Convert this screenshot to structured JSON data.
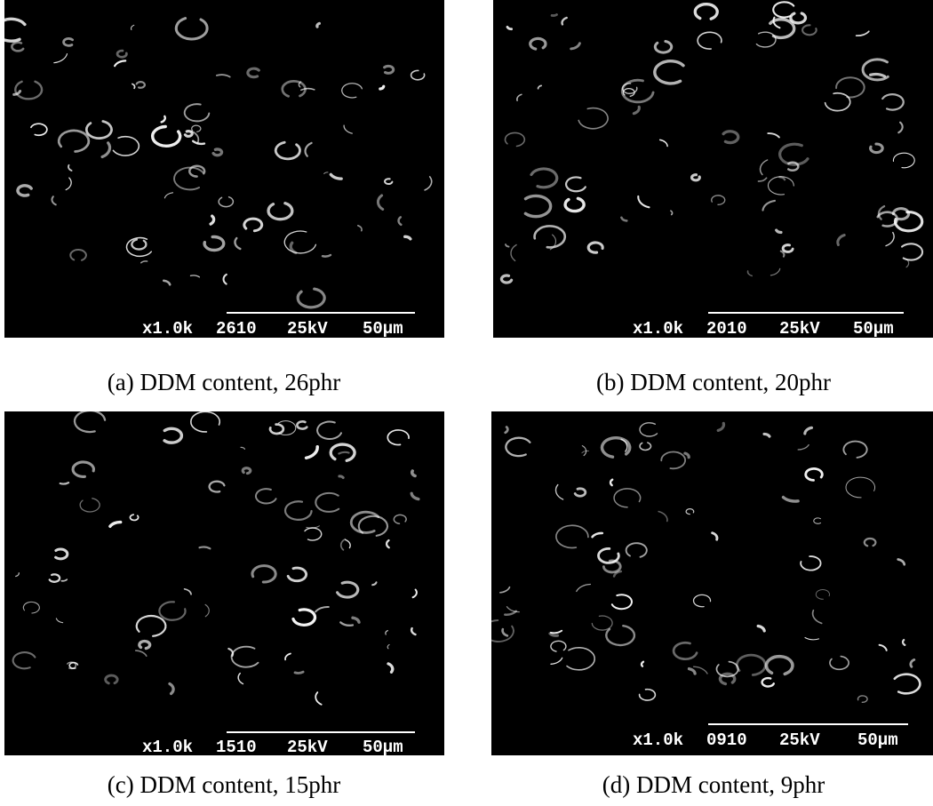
{
  "panels": [
    {
      "caption": "(a) DDM content, 26phr",
      "magnification": "x1.0k",
      "code": "2610",
      "voltage": "25kV",
      "scale": "50μm"
    },
    {
      "caption": "(b) DDM content, 20phr",
      "magnification": "x1.0k",
      "code": "2010",
      "voltage": "25kV",
      "scale": "50μm"
    },
    {
      "caption": "(c) DDM content, 15phr",
      "magnification": "x1.0k",
      "code": "1510",
      "voltage": "25kV",
      "scale": "50μm"
    },
    {
      "caption": "(d) DDM content, 9phr",
      "magnification": "x1.0k",
      "code": "0910",
      "voltage": "25kV",
      "scale": "50μm"
    }
  ]
}
